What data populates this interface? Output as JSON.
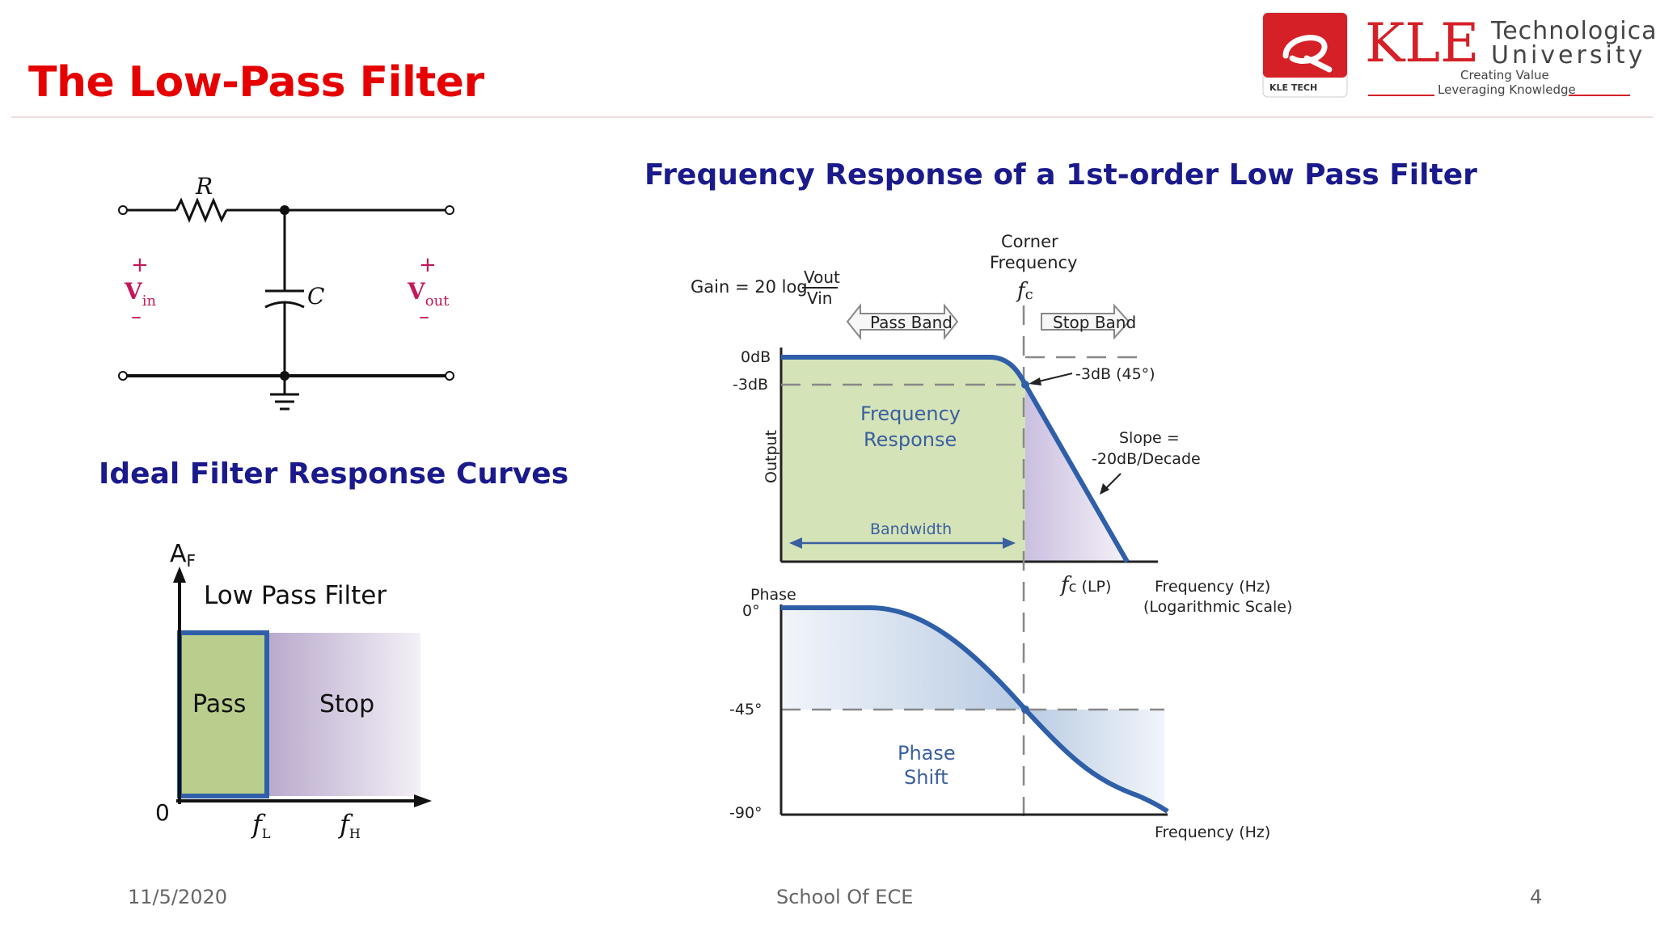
{
  "slide": {
    "title": "The Low-Pass Filter",
    "footer_date": "11/5/2020",
    "footer_center": "School Of ECE",
    "page_number": "4"
  },
  "logo": {
    "brand": "KLE",
    "line1": "Technological",
    "line2": "University",
    "tagline1": "Creating Value",
    "tagline2": "Leveraging Knowledge",
    "badge_text": "KLE TECH",
    "badge_color": "#d62027"
  },
  "circuit": {
    "resistor_label": "R",
    "capacitor_label": "C",
    "vin_main": "V",
    "vin_sub": "in",
    "vout_main": "V",
    "vout_sub": "out",
    "plus": "+",
    "minus": "–"
  },
  "ideal_curves": {
    "heading": "Ideal Filter Response Curves",
    "axis_label_main": "A",
    "axis_label_sub": "F",
    "filter_name": "Low Pass Filter",
    "pass_label": "Pass",
    "stop_label": "Stop",
    "origin": "0",
    "fl_main": "f",
    "fl_sub": "L",
    "fh_main": "f",
    "fh_sub": "H"
  },
  "freq_response": {
    "heading": "Frequency Response of a 1st-order Low Pass Filter",
    "gain_prefix": "Gain = 20 log",
    "gain_num": "Vout",
    "gain_den": "Vin",
    "corner_line1": "Corner",
    "corner_line2": "Frequency",
    "fc_main": "f",
    "fc_sub": "c",
    "pass_band": "Pass Band",
    "stop_band": "Stop Band",
    "y_0db": "0dB",
    "y_3db": "-3dB",
    "output_label": "Output",
    "response_line1": "Frequency",
    "response_line2": "Response",
    "bandwidth": "Bandwidth",
    "minus3db_note": "-3dB (45°)",
    "slope_line1": "Slope =",
    "slope_line2": "-20dB/Decade",
    "fc_lp": "(LP)",
    "freq_axis_line1": "Frequency (Hz)",
    "freq_axis_line2": "(Logarithmic Scale)",
    "phase_label": "Phase",
    "phase_0": "0°",
    "phase_45": "-45°",
    "phase_90": "-90°",
    "phase_shift_line1": "Phase",
    "phase_shift_line2": "Shift",
    "phase_freq_axis": "Frequency (Hz)",
    "curve_color": "#2f5fa8",
    "passband_fill": "#d5e3b8"
  }
}
